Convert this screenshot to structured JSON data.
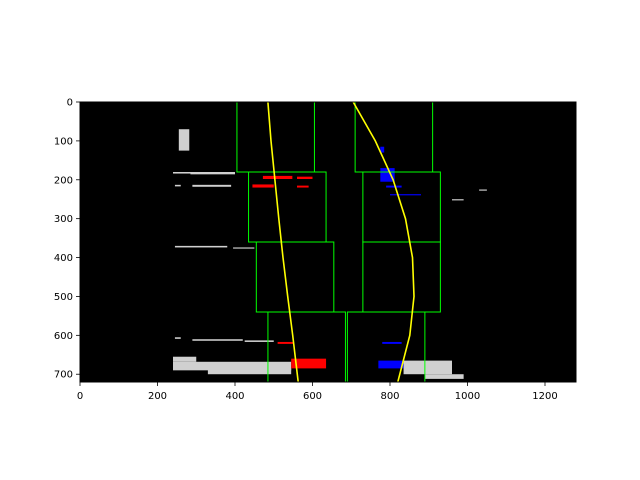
{
  "chart_data": {
    "type": "scatter",
    "title": "",
    "xlabel": "",
    "ylabel": "",
    "xlim": [
      0,
      1280
    ],
    "ylim": [
      720,
      0
    ],
    "y_inverted": true,
    "xticks": [
      0,
      200,
      400,
      600,
      800,
      1000,
      1200
    ],
    "yticks": [
      0,
      100,
      200,
      300,
      400,
      500,
      600,
      700
    ],
    "grid": false,
    "legend": "none",
    "background_color": "#000000",
    "colors": {
      "window": "#00ff00",
      "fit": "#ffff00",
      "left_pixels": "#ff0000",
      "right_pixels": "#0000ff",
      "other_pixels": "#d0d0d0"
    },
    "sliding_windows": {
      "left": [
        {
          "x0": 485,
          "x1": 685,
          "y0": 540,
          "y1": 720
        },
        {
          "x0": 455,
          "x1": 655,
          "y0": 360,
          "y1": 540
        },
        {
          "x0": 435,
          "x1": 635,
          "y0": 180,
          "y1": 360
        },
        {
          "x0": 405,
          "x1": 605,
          "y0": 0,
          "y1": 180
        }
      ],
      "right": [
        {
          "x0": 690,
          "x1": 890,
          "y0": 540,
          "y1": 720
        },
        {
          "x0": 730,
          "x1": 930,
          "y0": 360,
          "y1": 540
        },
        {
          "x0": 730,
          "x1": 930,
          "y0": 180,
          "y1": 360
        },
        {
          "x0": 710,
          "x1": 910,
          "y0": 0,
          "y1": 180
        }
      ]
    },
    "lane_fits": {
      "left": [
        {
          "x": 485,
          "y": 0
        },
        {
          "x": 493,
          "y": 100
        },
        {
          "x": 503,
          "y": 200
        },
        {
          "x": 513,
          "y": 300
        },
        {
          "x": 524,
          "y": 400
        },
        {
          "x": 536,
          "y": 500
        },
        {
          "x": 549,
          "y": 600
        },
        {
          "x": 563,
          "y": 720
        }
      ],
      "right": [
        {
          "x": 705,
          "y": 0
        },
        {
          "x": 762,
          "y": 100
        },
        {
          "x": 808,
          "y": 200
        },
        {
          "x": 840,
          "y": 300
        },
        {
          "x": 858,
          "y": 400
        },
        {
          "x": 862,
          "y": 500
        },
        {
          "x": 851,
          "y": 600
        },
        {
          "x": 820,
          "y": 720
        }
      ]
    },
    "pixel_regions": {
      "left_lane": [
        {
          "x0": 472,
          "x1": 548,
          "y0": 190,
          "y1": 198
        },
        {
          "x0": 445,
          "x1": 500,
          "y0": 212,
          "y1": 220
        },
        {
          "x0": 560,
          "x1": 600,
          "y0": 192,
          "y1": 198
        },
        {
          "x0": 560,
          "x1": 590,
          "y0": 215,
          "y1": 220
        },
        {
          "x0": 510,
          "x1": 550,
          "y0": 617,
          "y1": 622
        },
        {
          "x0": 545,
          "x1": 635,
          "y0": 660,
          "y1": 685
        }
      ],
      "right_lane": [
        {
          "x0": 775,
          "x1": 785,
          "y0": 115,
          "y1": 130
        },
        {
          "x0": 775,
          "x1": 812,
          "y0": 170,
          "y1": 205
        },
        {
          "x0": 790,
          "x1": 830,
          "y0": 215,
          "y1": 220
        },
        {
          "x0": 800,
          "x1": 880,
          "y0": 237,
          "y1": 240
        },
        {
          "x0": 780,
          "x1": 830,
          "y0": 617,
          "y1": 622
        },
        {
          "x0": 770,
          "x1": 835,
          "y0": 665,
          "y1": 685
        }
      ],
      "other": [
        {
          "x0": 255,
          "x1": 282,
          "y0": 70,
          "y1": 125
        },
        {
          "x0": 285,
          "x1": 400,
          "y0": 180,
          "y1": 186
        },
        {
          "x0": 240,
          "x1": 300,
          "y0": 180,
          "y1": 184
        },
        {
          "x0": 290,
          "x1": 390,
          "y0": 213,
          "y1": 218
        },
        {
          "x0": 245,
          "x1": 260,
          "y0": 213,
          "y1": 217
        },
        {
          "x0": 245,
          "x1": 380,
          "y0": 370,
          "y1": 374
        },
        {
          "x0": 395,
          "x1": 450,
          "y0": 374,
          "y1": 377
        },
        {
          "x0": 245,
          "x1": 260,
          "y0": 605,
          "y1": 609
        },
        {
          "x0": 290,
          "x1": 420,
          "y0": 610,
          "y1": 614
        },
        {
          "x0": 425,
          "x1": 500,
          "y0": 613,
          "y1": 617
        },
        {
          "x0": 240,
          "x1": 300,
          "y0": 655,
          "y1": 668
        },
        {
          "x0": 240,
          "x1": 545,
          "y0": 668,
          "y1": 690
        },
        {
          "x0": 330,
          "x1": 545,
          "y0": 685,
          "y1": 700
        },
        {
          "x0": 835,
          "x1": 960,
          "y0": 665,
          "y1": 700
        },
        {
          "x0": 890,
          "x1": 990,
          "y0": 700,
          "y1": 712
        },
        {
          "x0": 960,
          "x1": 990,
          "y0": 250,
          "y1": 253
        },
        {
          "x0": 1030,
          "x1": 1050,
          "y0": 225,
          "y1": 228
        }
      ]
    }
  }
}
